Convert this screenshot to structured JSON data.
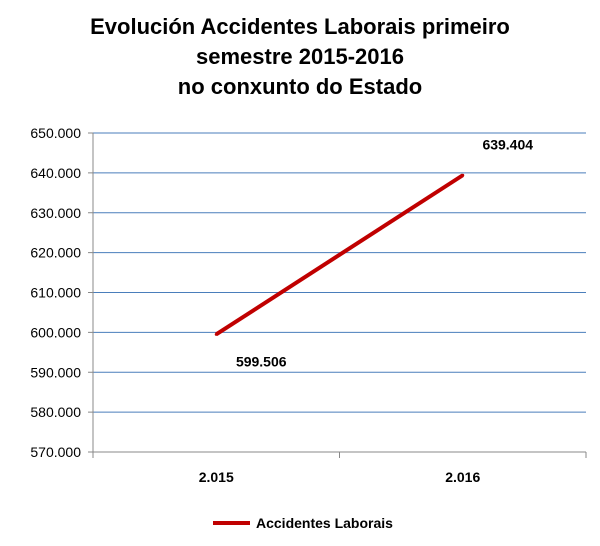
{
  "chart_data": {
    "type": "line",
    "title_lines": [
      "Evolución Accidentes Laborais primeiro",
      "semestre 2015-2016",
      "no conxunto do Estado"
    ],
    "categories": [
      "2.015",
      "2.016"
    ],
    "series": [
      {
        "name": "Accidentes Laborais",
        "values": [
          599506,
          639404
        ],
        "data_labels": [
          "599.506",
          "639.404"
        ],
        "color": "#c00000"
      }
    ],
    "ylim": [
      570000,
      650000
    ],
    "ystep": 10000,
    "ytick_labels": [
      "570.000",
      "580.000",
      "590.000",
      "600.000",
      "610.000",
      "620.000",
      "630.000",
      "640.000",
      "650.000"
    ],
    "grid": true,
    "grid_color": "#4a7ebb",
    "legend_position": "bottom"
  }
}
